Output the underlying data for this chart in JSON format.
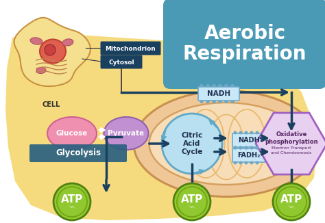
{
  "title": "Aerobic\nRespiration",
  "title_bg": "#4a9ab5",
  "bg_color": "#ffffff",
  "yellow_blob_color": "#f5d870",
  "cell_outer_color": "#f5e090",
  "cell_border_color": "#c89040",
  "nucleus_color": "#e06050",
  "nucleus_border": "#c04030",
  "mito_outer_color": "#f0c898",
  "mito_outer_border": "#c89050",
  "mito_inner_color": "#f8deb8",
  "mito_inner_border": "#d4a060",
  "mito_cristae_color": "#e8b870",
  "glucose_label": "Glucose",
  "glucose_color": "#f090b0",
  "glucose_border": "#d06090",
  "pyruvate_label": "Pyruvate",
  "pyruvate_color": "#c090d0",
  "pyruvate_border": "#9060b0",
  "glycolysis_label": "Glycolysis",
  "glycolysis_bg": "#2a6080",
  "citric_label": "Citric\nAcid\nCycle",
  "citric_color": "#b8e0f0",
  "citric_border": "#60a8c8",
  "nadh_label": "NADH",
  "nadh_color": "#c8e8f8",
  "nadh_border": "#70a8c8",
  "fadh2_label": "FADH₂",
  "fadh2_color": "#c8e8f8",
  "fadh2_border": "#70a8c8",
  "oxphos_label": "Oxidative\nphosphorylation",
  "oxphos_sub": "Electron Transport\nand Chemiosmosis",
  "oxphos_color": "#e8d0f0",
  "oxphos_border": "#a060c0",
  "atp_label": "ATP",
  "atp_color": "#90c830",
  "atp_border": "#508010",
  "arrow_color": "#1a4060",
  "cell_label": "CELL",
  "mitochondrion_label": "Mitochondrion",
  "cytosol_label": "Cytosol",
  "label_bg": "#1a4060"
}
